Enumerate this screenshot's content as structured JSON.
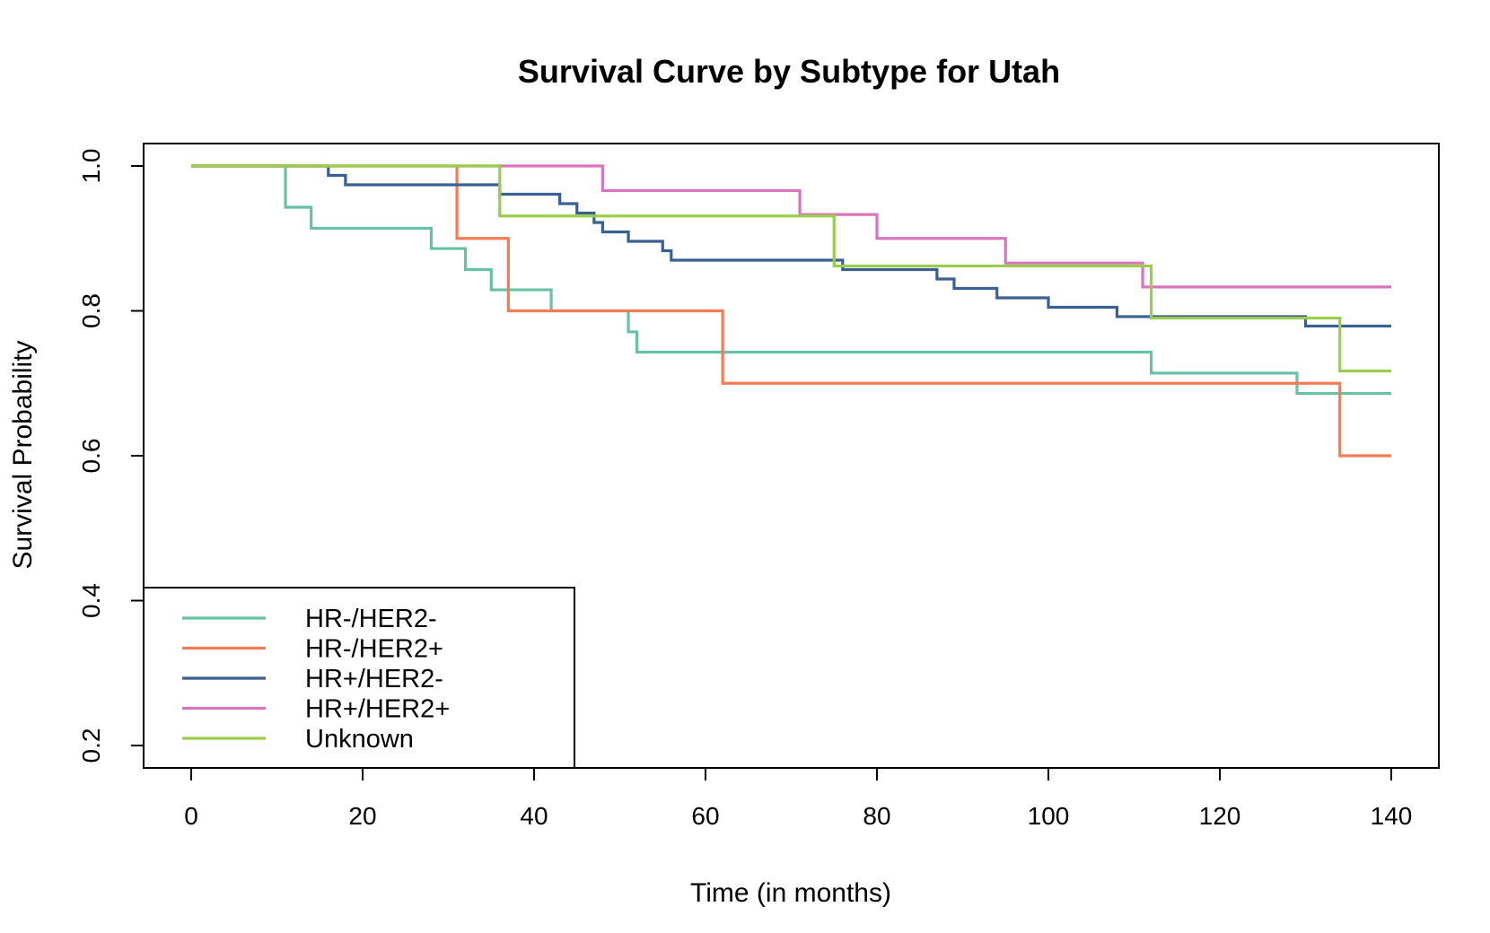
{
  "chart_data": {
    "type": "line",
    "step": true,
    "title": "Survival Curve by Subtype for Utah",
    "xlabel": "Time (in months)",
    "ylabel": "Survival Probability",
    "xlim": [
      0,
      140
    ],
    "ylim": [
      0.2,
      1.0
    ],
    "x_ticks": [
      0,
      20,
      40,
      60,
      80,
      100,
      120,
      140
    ],
    "y_ticks": [
      0.2,
      0.4,
      0.6,
      0.8,
      1.0
    ],
    "x_tick_labels": [
      "0",
      "20",
      "40",
      "60",
      "80",
      "100",
      "120",
      "140"
    ],
    "y_tick_labels": [
      "0.2",
      "0.4",
      "0.6",
      "0.8",
      "1.0"
    ],
    "grid": false,
    "legend_position": "bottom-left",
    "series": [
      {
        "name": "HR-/HER2-",
        "color": "#66c2a5",
        "x": [
          0,
          11,
          14,
          28,
          32,
          35,
          42,
          51,
          52,
          112,
          129,
          140
        ],
        "y": [
          1.0,
          0.943,
          0.914,
          0.886,
          0.857,
          0.829,
          0.8,
          0.771,
          0.743,
          0.714,
          0.686,
          0.686
        ]
      },
      {
        "name": "HR-/HER2+",
        "color": "#f47c54",
        "x": [
          0,
          31,
          37,
          62,
          134,
          140
        ],
        "y": [
          1.0,
          0.9,
          0.8,
          0.7,
          0.6,
          0.6
        ]
      },
      {
        "name": "HR+/HER2-",
        "color": "#3a5f91",
        "x": [
          0,
          16,
          18,
          36,
          43,
          45,
          47,
          48,
          51,
          55,
          56,
          76,
          87,
          89,
          94,
          100,
          108,
          130,
          140
        ],
        "y": [
          1.0,
          0.987,
          0.974,
          0.961,
          0.948,
          0.935,
          0.922,
          0.909,
          0.896,
          0.883,
          0.87,
          0.857,
          0.844,
          0.831,
          0.818,
          0.805,
          0.792,
          0.779,
          0.779
        ]
      },
      {
        "name": "HR+/HER2+",
        "color": "#d975bf",
        "x": [
          0,
          48,
          71,
          80,
          95,
          111,
          140
        ],
        "y": [
          1.0,
          0.966,
          0.933,
          0.9,
          0.866,
          0.833,
          0.833
        ]
      },
      {
        "name": "Unknown",
        "color": "#9acd4c",
        "x": [
          0,
          36,
          75,
          112,
          134,
          140
        ],
        "y": [
          1.0,
          0.931,
          0.862,
          0.79,
          0.717,
          0.717
        ]
      }
    ]
  }
}
